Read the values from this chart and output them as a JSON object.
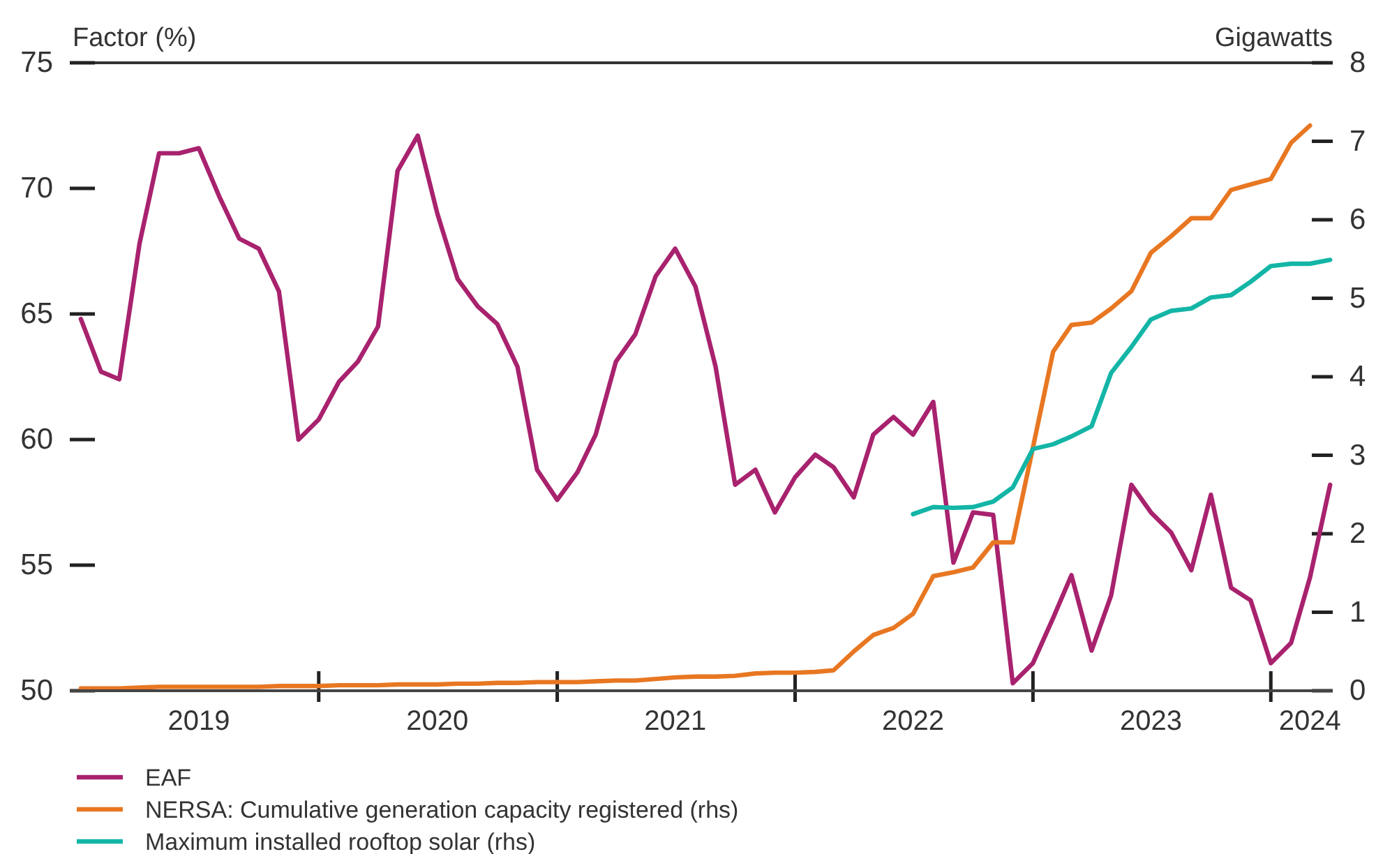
{
  "chart_data": {
    "type": "line",
    "ylabel": "Factor (%)",
    "y2label": "Gigawatts",
    "x": [
      "2019-01",
      "2019-02",
      "2019-03",
      "2019-04",
      "2019-05",
      "2019-06",
      "2019-07",
      "2019-08",
      "2019-09",
      "2019-10",
      "2019-11",
      "2019-12",
      "2020-01",
      "2020-02",
      "2020-03",
      "2020-04",
      "2020-05",
      "2020-06",
      "2020-07",
      "2020-08",
      "2020-09",
      "2020-10",
      "2020-11",
      "2020-12",
      "2021-01",
      "2021-02",
      "2021-03",
      "2021-04",
      "2021-05",
      "2021-06",
      "2021-07",
      "2021-08",
      "2021-09",
      "2021-10",
      "2021-11",
      "2021-12",
      "2022-01",
      "2022-02",
      "2022-03",
      "2022-04",
      "2022-05",
      "2022-06",
      "2022-07",
      "2022-08",
      "2022-09",
      "2022-10",
      "2022-11",
      "2022-12",
      "2023-01",
      "2023-02",
      "2023-03",
      "2023-04",
      "2023-05",
      "2023-06",
      "2023-07",
      "2023-08",
      "2023-09",
      "2023-10",
      "2023-11",
      "2023-12",
      "2024-01",
      "2024-02",
      "2024-03",
      "2024-04"
    ],
    "xlim": [
      "2018-12-15",
      "2024-04-05"
    ],
    "xticks": [
      {
        "value": "2019-07",
        "label": "2019"
      },
      {
        "value": "2020-01",
        "label": null
      },
      {
        "value": "2020-07",
        "label": "2020"
      },
      {
        "value": "2021-01",
        "label": null
      },
      {
        "value": "2021-07",
        "label": "2021"
      },
      {
        "value": "2022-01",
        "label": null
      },
      {
        "value": "2022-07",
        "label": "2022"
      },
      {
        "value": "2023-01",
        "label": null
      },
      {
        "value": "2023-07",
        "label": "2023"
      },
      {
        "value": "2024-01",
        "label": null
      },
      {
        "value": "2024-03",
        "label": "2024"
      }
    ],
    "ylim": [
      50,
      75
    ],
    "yticks": [
      50,
      55,
      60,
      65,
      70,
      75
    ],
    "y2lim": [
      0,
      8
    ],
    "y2ticks": [
      0,
      1,
      2,
      3,
      4,
      5,
      6,
      7,
      8
    ],
    "legend": "bottom",
    "line_style": "solid",
    "series": [
      {
        "name": "EAF",
        "color": "#a8226e",
        "values": [
          64.8,
          62.7,
          62.4,
          67.8,
          71.4,
          71.4,
          71.6,
          69.7,
          68.0,
          67.6,
          65.9,
          60.0,
          60.8,
          62.3,
          63.1,
          64.5,
          70.7,
          72.1,
          69.0,
          66.4,
          65.3,
          64.6,
          62.9,
          58.8,
          57.6,
          58.7,
          60.2,
          63.1,
          64.2,
          66.5,
          67.6,
          66.1,
          62.9,
          58.2,
          58.8,
          57.1,
          58.5,
          59.4,
          58.9,
          57.7,
          60.2,
          60.9,
          60.2,
          61.5,
          55.1,
          57.1,
          57.0,
          50.3,
          51.1,
          52.9,
          54.6,
          51.6,
          53.8,
          58.2,
          57.1,
          56.3,
          54.8,
          57.8,
          54.1,
          53.6,
          51.1,
          51.9,
          54.5,
          58.2
        ]
      },
      {
        "name": "NERSA: Cumulative generation capacity registered (rhs)",
        "color": "#e87722",
        "axis": "y2",
        "values": [
          0.03,
          0.03,
          0.03,
          0.04,
          0.05,
          0.05,
          0.05,
          0.05,
          0.05,
          0.05,
          0.06,
          0.06,
          0.06,
          0.07,
          0.07,
          0.07,
          0.08,
          0.08,
          0.08,
          0.09,
          0.09,
          0.1,
          0.1,
          0.11,
          0.11,
          0.11,
          0.12,
          0.13,
          0.13,
          0.15,
          0.17,
          0.18,
          0.18,
          0.19,
          0.22,
          0.23,
          0.23,
          0.24,
          0.26,
          0.5,
          0.71,
          0.8,
          0.98,
          1.46,
          1.51,
          1.57,
          1.89,
          1.89,
          3.1,
          4.32,
          4.66,
          4.69,
          4.87,
          5.09,
          5.58,
          5.79,
          6.02,
          6.02,
          6.38,
          6.45,
          6.52,
          6.98,
          7.2,
          null
        ]
      },
      {
        "name": "Maximum installed rooftop solar (rhs)",
        "color": "#13b5a6",
        "axis": "y2",
        "values": [
          null,
          null,
          null,
          null,
          null,
          null,
          null,
          null,
          null,
          null,
          null,
          null,
          null,
          null,
          null,
          null,
          null,
          null,
          null,
          null,
          null,
          null,
          null,
          null,
          null,
          null,
          null,
          null,
          null,
          null,
          null,
          null,
          null,
          null,
          null,
          null,
          null,
          null,
          null,
          null,
          null,
          null,
          2.25,
          2.34,
          2.33,
          2.34,
          2.41,
          2.59,
          3.08,
          3.14,
          3.24,
          3.37,
          4.05,
          4.38,
          4.73,
          4.84,
          4.87,
          5.01,
          5.04,
          5.21,
          5.41,
          5.44,
          5.44,
          5.49
        ]
      }
    ]
  }
}
